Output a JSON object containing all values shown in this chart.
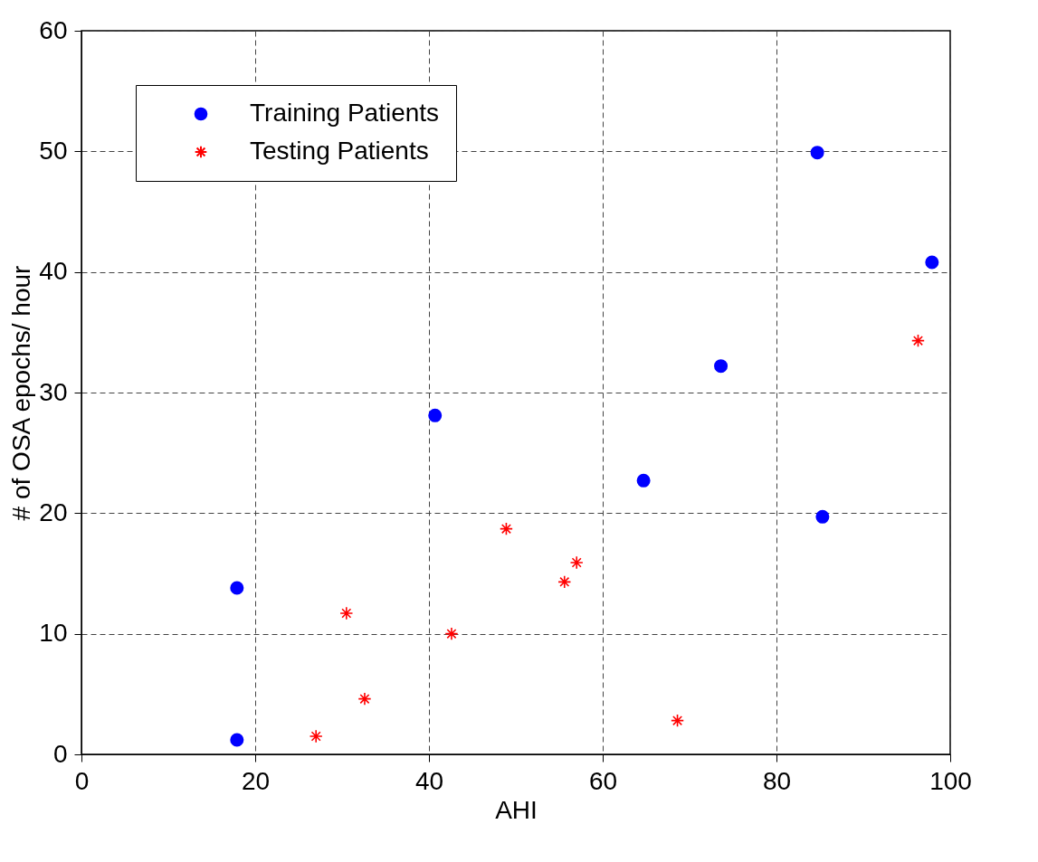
{
  "chart_data": {
    "type": "scatter",
    "xlabel": "AHI",
    "ylabel": "# of OSA epochs/ hour",
    "xlim": [
      0,
      100
    ],
    "ylim": [
      0,
      60
    ],
    "xticks": [
      0,
      20,
      40,
      60,
      80,
      100
    ],
    "yticks": [
      0,
      10,
      20,
      30,
      40,
      50,
      60
    ],
    "grid": true,
    "legend": "top left",
    "series": [
      {
        "name": "Training Patients",
        "color": "#0000ff",
        "marker": "circle",
        "x": [
          17.9,
          17.9,
          40.7,
          64.7,
          73.6,
          84.7,
          85.3,
          97.9
        ],
        "values": [
          13.8,
          1.2,
          28.1,
          22.7,
          32.2,
          49.9,
          19.7,
          40.8
        ]
      },
      {
        "name": "Testing Patients",
        "color": "#ff0000",
        "marker": "cross",
        "x": [
          27.0,
          30.5,
          32.6,
          42.6,
          48.9,
          55.6,
          57.0,
          68.6,
          96.3
        ],
        "values": [
          1.5,
          11.7,
          4.6,
          10.0,
          18.7,
          14.3,
          15.9,
          2.8,
          34.3
        ]
      }
    ]
  }
}
